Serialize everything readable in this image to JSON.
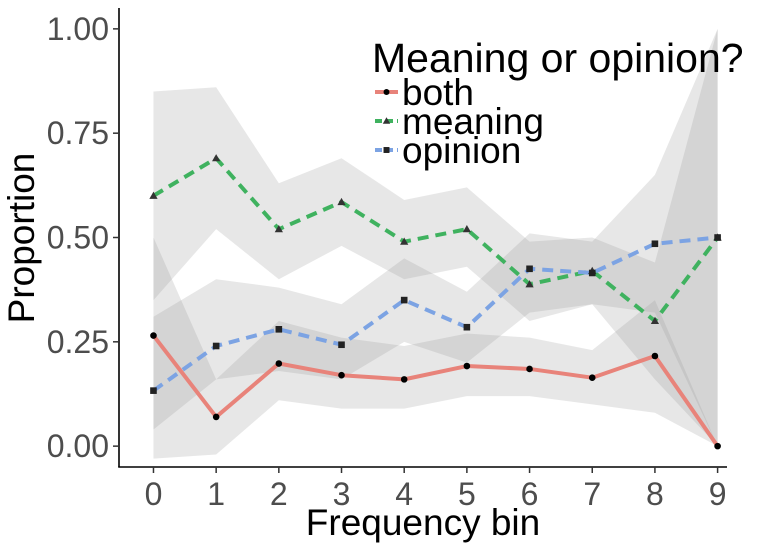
{
  "chart_data": {
    "type": "line",
    "title": "",
    "xlabel": "Frequency bin",
    "ylabel": "Proportion",
    "x": [
      0,
      1,
      2,
      3,
      4,
      5,
      6,
      7,
      8,
      9
    ],
    "x_tick_labels": [
      "0",
      "1",
      "2",
      "3",
      "4",
      "5",
      "6",
      "7",
      "8",
      "9"
    ],
    "xlim": [
      -0.55,
      9.15
    ],
    "ylim": [
      -0.05,
      1.05
    ],
    "y_ticks": [
      0,
      0.25,
      0.5,
      0.75,
      1
    ],
    "y_tick_labels": [
      "0.00",
      "0.25",
      "0.50",
      "0.75",
      "1.00"
    ],
    "grid": false,
    "legend": {
      "title": "Meaning or opinion?",
      "placement": "top-right",
      "entries": [
        "both",
        "meaning",
        "opinion"
      ]
    },
    "series": [
      {
        "name": "both",
        "color": "#E8837A",
        "dash": "solid",
        "marker": "circle",
        "values": [
          0.265,
          0.07,
          0.198,
          0.17,
          0.16,
          0.192,
          0.185,
          0.164,
          0.216,
          0.0
        ],
        "ci_low": [
          -0.03,
          -0.02,
          0.11,
          0.09,
          0.09,
          0.12,
          0.12,
          0.1,
          0.08,
          0.0
        ],
        "ci_high": [
          0.5,
          0.16,
          0.3,
          0.26,
          0.24,
          0.27,
          0.26,
          0.23,
          0.35,
          0.0
        ]
      },
      {
        "name": "meaning",
        "color": "#3FB25F",
        "dash": "dashed",
        "marker": "triangle",
        "values": [
          0.6,
          0.69,
          0.52,
          0.585,
          0.49,
          0.52,
          0.388,
          0.42,
          0.3,
          0.5
        ],
        "ci_low": [
          0.35,
          0.52,
          0.4,
          0.48,
          0.4,
          0.43,
          0.3,
          0.34,
          0.16,
          0.0
        ],
        "ci_high": [
          0.85,
          0.86,
          0.63,
          0.69,
          0.59,
          0.62,
          0.49,
          0.5,
          0.44,
          1.0
        ]
      },
      {
        "name": "opinion",
        "color": "#7CA3E3",
        "dash": "dashed",
        "marker": "square",
        "values": [
          0.133,
          0.24,
          0.28,
          0.243,
          0.35,
          0.285,
          0.425,
          0.415,
          0.485,
          0.5
        ],
        "ci_low": [
          0.04,
          0.16,
          0.18,
          0.16,
          0.25,
          0.2,
          0.32,
          0.34,
          0.32,
          0.0
        ],
        "ci_high": [
          0.31,
          0.4,
          0.38,
          0.34,
          0.45,
          0.37,
          0.51,
          0.49,
          0.65,
          1.0
        ]
      }
    ]
  }
}
